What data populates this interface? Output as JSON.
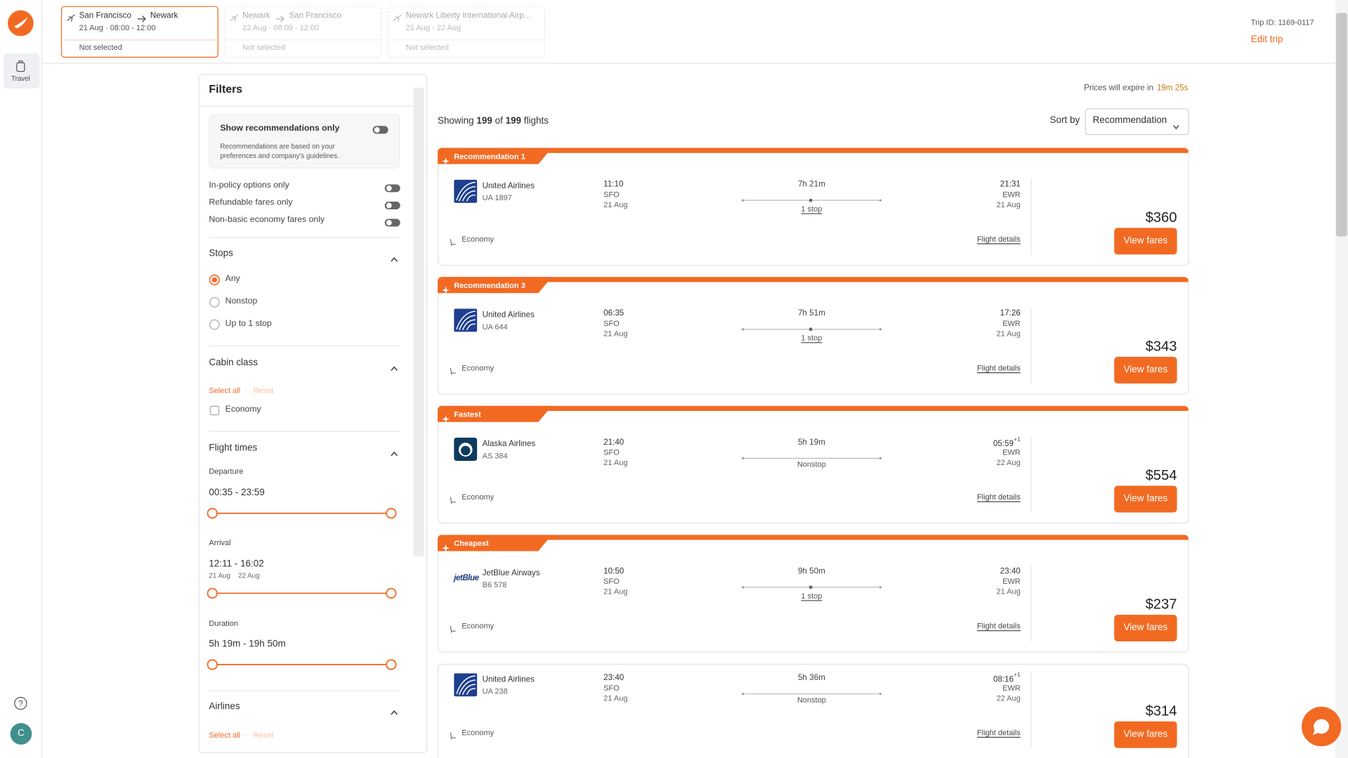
{
  "nav": {
    "travel": "Travel",
    "avatar": "C"
  },
  "trip_tabs": [
    {
      "from": "San Francisco",
      "to": "Newark",
      "dates": "21 Aug · 08:00 - 12:00",
      "status": "Not selected"
    },
    {
      "from": "Newark",
      "to": "San Francisco",
      "dates": "22 Aug · 08:00 - 12:00",
      "status": "Not selected"
    },
    {
      "title": "Newark Liberty International Airp...",
      "dates": "21 Aug - 22 Aug",
      "status": "Not selected"
    }
  ],
  "trip": {
    "id": "Trip ID: 1169-0117",
    "edit": "Edit trip"
  },
  "filters": {
    "title": "Filters",
    "recommendations": {
      "label": "Show recommendations only",
      "note": [
        "Recommendations are based on your",
        "preferences and company's guidelines."
      ]
    },
    "toggles": [
      "In-policy options only",
      "Refundable fares only",
      "Non-basic economy fares only"
    ],
    "stops": {
      "title": "Stops",
      "options": [
        "Any",
        "Nonstop",
        "Up to 1 stop"
      ]
    },
    "cabin": {
      "title": "Cabin class",
      "select_all": "Select all",
      "separator": "·",
      "reset": "Reset",
      "options": [
        "Economy"
      ]
    },
    "times": {
      "title": "Flight times",
      "departure": {
        "label": "Departure",
        "range": "00:35 - 23:59"
      },
      "arrival": {
        "label": "Arrival",
        "range": "12:11 - 16:02",
        "dates": [
          "21 Aug",
          "22 Aug"
        ]
      },
      "duration": {
        "label": "Duration",
        "range": "5h 19m - 19h 50m"
      }
    },
    "airlines": {
      "title": "Airlines",
      "select_all": "Select all",
      "separator": "·",
      "reset": "Reset"
    }
  },
  "results": {
    "expire_text": "Prices will expire in",
    "expire_time": "19m 25s",
    "showing": {
      "prefix": "Showing",
      "count": "199",
      "of": "of",
      "total": "199",
      "suffix": "flights"
    },
    "sort_label": "Sort by",
    "sort_value": "Recommendation"
  },
  "flights": [
    {
      "tag": "Recommendation 1",
      "airline": "United Airlines",
      "flight": "UA 1897",
      "dep_time": "11:10",
      "dep_airport": "SFO",
      "dep_date": "21 Aug",
      "duration": "7h 21m",
      "stops": "1 stop",
      "arr_time": "21:31",
      "arr_airport": "EWR",
      "arr_date": "21 Aug",
      "cabin": "Economy",
      "details": "Flight details",
      "price": "$360",
      "button": "View fares"
    },
    {
      "tag": "Recommendation 3",
      "airline": "United Airlines",
      "flight": "UA 644",
      "dep_time": "06:35",
      "dep_airport": "SFO",
      "dep_date": "21 Aug",
      "duration": "7h 51m",
      "stops": "1 stop",
      "arr_time": "17:26",
      "arr_airport": "EWR",
      "arr_date": "21 Aug",
      "cabin": "Economy",
      "details": "Flight details",
      "price": "$343",
      "button": "View fares"
    },
    {
      "tag": "Fastest",
      "airline": "Alaska Airlines",
      "flight": "AS 384",
      "dep_time": "21:40",
      "dep_airport": "SFO",
      "dep_date": "21 Aug",
      "duration": "5h 19m",
      "stops": "Nonstop",
      "arr_time": "05:59",
      "arr_offset": "+1",
      "arr_airport": "EWR",
      "arr_date": "22 Aug",
      "cabin": "Economy",
      "details": "Flight details",
      "price": "$554",
      "button": "View fares"
    },
    {
      "tag": "Cheapest",
      "airline": "JetBlue Airways",
      "logo_text": "jetBlue",
      "flight": "B6 578",
      "dep_time": "10:50",
      "dep_airport": "SFO",
      "dep_date": "21 Aug",
      "duration": "9h 50m",
      "stops": "1 stop",
      "arr_time": "23:40",
      "arr_airport": "EWR",
      "arr_date": "21 Aug",
      "cabin": "Economy",
      "details": "Flight details",
      "price": "$237",
      "button": "View fares"
    },
    {
      "airline": "United Airlines",
      "flight": "UA 238",
      "dep_time": "23:40",
      "dep_airport": "SFO",
      "dep_date": "21 Aug",
      "duration": "5h 36m",
      "stops": "Nonstop",
      "arr_time": "08:16",
      "arr_offset": "+1",
      "arr_airport": "EWR",
      "arr_date": "22 Aug",
      "cabin": "Economy",
      "details": "Flight details",
      "price": "$314",
      "button": "View fares"
    }
  ]
}
